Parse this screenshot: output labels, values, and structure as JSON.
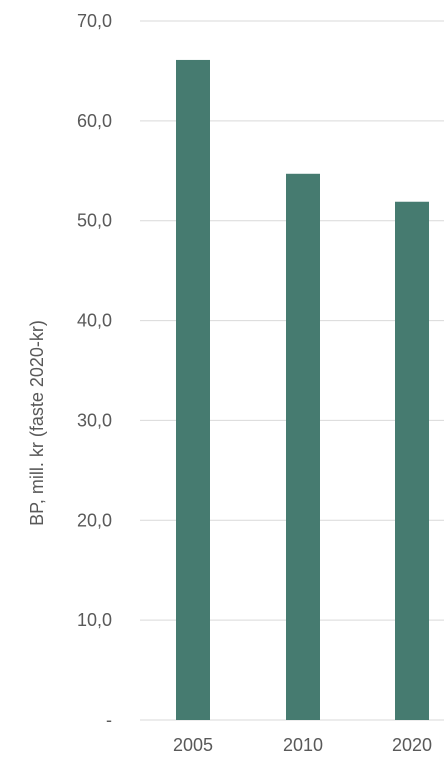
{
  "chart_data": {
    "type": "bar",
    "categories": [
      "2005",
      "2010",
      "2020"
    ],
    "values": [
      66.1,
      54.7,
      51.9
    ],
    "title": "",
    "xlabel": "",
    "ylabel": "BP, mill. kr (faste 2020-kr)",
    "ylim": [
      0,
      70
    ],
    "yticks": [
      0,
      10,
      20,
      30,
      40,
      50,
      60,
      70
    ],
    "ytick_labels": [
      "-",
      "10,0",
      "20,0",
      "30,0",
      "40,0",
      "50,0",
      "60,0",
      "70,0"
    ],
    "grid": true,
    "legend": "none",
    "bar_color": "#467b70",
    "grid_color": "#d9d9d9",
    "text_color": "#595959"
  }
}
